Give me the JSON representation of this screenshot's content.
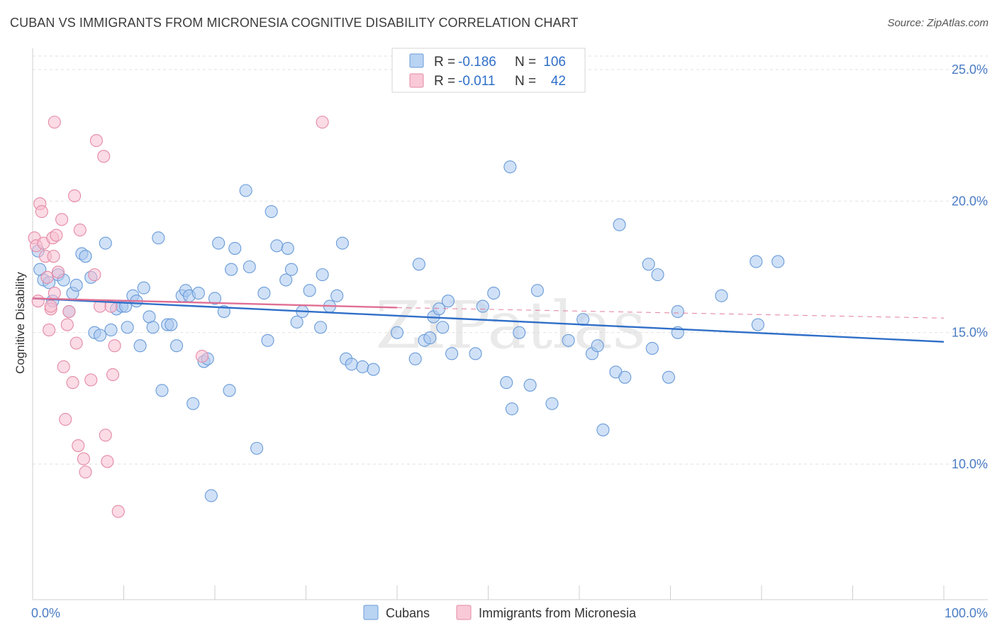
{
  "title": "CUBAN VS IMMIGRANTS FROM MICRONESIA COGNITIVE DISABILITY CORRELATION CHART",
  "source": "Source: ZipAtlas.com",
  "watermark": "ZIPatlas",
  "legend_top": [
    {
      "r_label": "R =",
      "r_value": "-0.186",
      "n_label": "N =",
      "n_value": "106",
      "color": "#a9c8f0",
      "stroke": "#6a9bd8"
    },
    {
      "r_label": "R =",
      "r_value": "-0.011",
      "n_label": "N =",
      "n_value": "42",
      "color": "#f7bed0",
      "stroke": "#e48aa6"
    }
  ],
  "legend_bottom": [
    {
      "label": "Cubans",
      "color": "#b9d3f3",
      "stroke": "#6a9bd8"
    },
    {
      "label": "Immigrants from Micronesia",
      "color": "#f9c9d7",
      "stroke": "#e48aa6"
    }
  ],
  "chart_data": {
    "type": "scatter",
    "title": "CUBAN VS IMMIGRANTS FROM MICRONESIA COGNITIVE DISABILITY CORRELATION CHART",
    "xlabel": "",
    "ylabel": "Cognitive Disability",
    "xlim": [
      0,
      100
    ],
    "ylim": [
      5,
      26
    ],
    "x_tick_labels": [
      "0.0%",
      "100.0%"
    ],
    "y_ticks": [
      10,
      15,
      20,
      25
    ],
    "y_tick_labels": [
      "10.0%",
      "15.0%",
      "20.0%",
      "25.0%"
    ],
    "grid": true,
    "legend_position": "top-center",
    "series": [
      {
        "name": "Cubans",
        "color": "#a9c8f0",
        "stroke": "#6a9bd8",
        "trend": {
          "x0": 0,
          "y0": 16.3,
          "x1": 100,
          "y1": 14.65,
          "color": "#2f6fc8"
        },
        "points": [
          [
            0.6,
            18.1
          ],
          [
            0.8,
            17.4
          ],
          [
            1.2,
            17.0
          ],
          [
            1.8,
            16.9
          ],
          [
            2.2,
            16.2
          ],
          [
            2.8,
            17.2
          ],
          [
            3.4,
            17.0
          ],
          [
            4.0,
            15.8
          ],
          [
            4.4,
            16.5
          ],
          [
            4.8,
            16.8
          ],
          [
            5.4,
            18.0
          ],
          [
            5.8,
            17.9
          ],
          [
            6.4,
            17.1
          ],
          [
            6.8,
            15.0
          ],
          [
            7.4,
            14.9
          ],
          [
            8.0,
            18.4
          ],
          [
            8.6,
            15.1
          ],
          [
            9.2,
            15.9
          ],
          [
            9.8,
            16.0
          ],
          [
            10.2,
            16.0
          ],
          [
            10.4,
            15.2
          ],
          [
            11.0,
            16.4
          ],
          [
            11.4,
            16.2
          ],
          [
            11.8,
            14.5
          ],
          [
            12.2,
            16.7
          ],
          [
            12.8,
            15.6
          ],
          [
            13.2,
            15.2
          ],
          [
            13.8,
            18.6
          ],
          [
            14.2,
            12.8
          ],
          [
            14.8,
            15.3
          ],
          [
            15.2,
            15.3
          ],
          [
            15.8,
            14.5
          ],
          [
            16.4,
            16.4
          ],
          [
            16.8,
            16.6
          ],
          [
            17.2,
            16.4
          ],
          [
            17.6,
            12.3
          ],
          [
            18.2,
            16.5
          ],
          [
            18.8,
            13.9
          ],
          [
            19.2,
            14.0
          ],
          [
            19.6,
            8.8
          ],
          [
            20.0,
            16.3
          ],
          [
            20.4,
            18.4
          ],
          [
            21.0,
            15.8
          ],
          [
            21.6,
            12.8
          ],
          [
            21.8,
            17.4
          ],
          [
            22.2,
            18.2
          ],
          [
            23.4,
            20.4
          ],
          [
            23.8,
            17.5
          ],
          [
            24.6,
            10.6
          ],
          [
            25.4,
            16.5
          ],
          [
            25.8,
            14.7
          ],
          [
            26.2,
            19.6
          ],
          [
            26.8,
            18.3
          ],
          [
            27.8,
            17.0
          ],
          [
            28.0,
            18.2
          ],
          [
            28.4,
            17.4
          ],
          [
            29.0,
            15.4
          ],
          [
            29.6,
            15.8
          ],
          [
            30.4,
            16.6
          ],
          [
            31.6,
            15.2
          ],
          [
            31.8,
            17.2
          ],
          [
            32.6,
            16.0
          ],
          [
            33.4,
            16.4
          ],
          [
            34.0,
            18.4
          ],
          [
            34.4,
            14.0
          ],
          [
            35.0,
            13.8
          ],
          [
            36.2,
            13.7
          ],
          [
            37.4,
            13.6
          ],
          [
            40.0,
            15.0
          ],
          [
            42.0,
            14.0
          ],
          [
            42.4,
            17.6
          ],
          [
            43.0,
            14.7
          ],
          [
            43.6,
            14.8
          ],
          [
            44.0,
            15.6
          ],
          [
            44.6,
            15.9
          ],
          [
            45.0,
            15.2
          ],
          [
            45.6,
            16.2
          ],
          [
            46.0,
            14.2
          ],
          [
            48.6,
            14.2
          ],
          [
            49.4,
            16.0
          ],
          [
            50.6,
            16.5
          ],
          [
            52.0,
            13.1
          ],
          [
            52.6,
            12.1
          ],
          [
            53.4,
            15.0
          ],
          [
            54.6,
            13.0
          ],
          [
            55.4,
            16.6
          ],
          [
            57.0,
            12.3
          ],
          [
            58.8,
            14.7
          ],
          [
            60.4,
            15.5
          ],
          [
            61.4,
            14.2
          ],
          [
            62.0,
            14.5
          ],
          [
            62.6,
            11.3
          ],
          [
            64.0,
            13.5
          ],
          [
            64.4,
            19.1
          ],
          [
            65.0,
            13.3
          ],
          [
            67.6,
            17.6
          ],
          [
            68.0,
            14.4
          ],
          [
            68.6,
            17.2
          ],
          [
            69.8,
            13.3
          ],
          [
            70.8,
            15.0
          ],
          [
            70.8,
            15.8
          ],
          [
            75.6,
            16.4
          ],
          [
            79.4,
            17.7
          ],
          [
            81.8,
            17.7
          ],
          [
            79.6,
            15.3
          ],
          [
            52.4,
            21.3
          ]
        ]
      },
      {
        "name": "Immigrants from Micronesia",
        "color": "#f7bed0",
        "stroke": "#e48aa6",
        "trend": {
          "x0": 0,
          "y0": 16.3,
          "x1": 40,
          "y1": 15.95,
          "dash_to_x": 100,
          "dash_to_y": 15.55,
          "color": "#e06f94"
        },
        "points": [
          [
            0.2,
            18.6
          ],
          [
            0.4,
            18.3
          ],
          [
            0.6,
            16.2
          ],
          [
            0.8,
            19.9
          ],
          [
            1.0,
            19.6
          ],
          [
            1.2,
            18.4
          ],
          [
            1.4,
            17.9
          ],
          [
            1.6,
            17.1
          ],
          [
            1.8,
            15.1
          ],
          [
            2.0,
            15.9
          ],
          [
            2.2,
            18.6
          ],
          [
            2.4,
            16.5
          ],
          [
            2.6,
            18.7
          ],
          [
            2.8,
            17.3
          ],
          [
            3.2,
            19.3
          ],
          [
            3.4,
            13.7
          ],
          [
            3.6,
            11.7
          ],
          [
            3.8,
            15.3
          ],
          [
            4.0,
            15.8
          ],
          [
            4.4,
            13.1
          ],
          [
            4.6,
            20.2
          ],
          [
            4.8,
            14.6
          ],
          [
            5.0,
            10.7
          ],
          [
            5.2,
            18.9
          ],
          [
            5.6,
            10.2
          ],
          [
            5.8,
            9.7
          ],
          [
            6.4,
            13.2
          ],
          [
            6.8,
            17.2
          ],
          [
            7.0,
            22.3
          ],
          [
            7.4,
            16.0
          ],
          [
            7.8,
            21.7
          ],
          [
            8.0,
            11.1
          ],
          [
            8.2,
            10.1
          ],
          [
            8.6,
            16.0
          ],
          [
            8.8,
            13.4
          ],
          [
            9.0,
            14.5
          ],
          [
            9.4,
            8.2
          ],
          [
            2.4,
            23.0
          ],
          [
            31.8,
            23.0
          ],
          [
            18.6,
            14.1
          ],
          [
            2.0,
            16.0
          ],
          [
            2.3,
            17.9
          ]
        ]
      }
    ]
  }
}
